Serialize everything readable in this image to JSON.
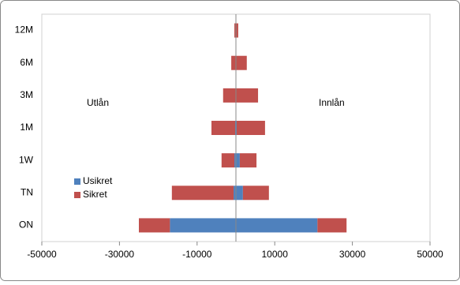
{
  "chart_data": {
    "type": "bar",
    "orientation": "horizontal",
    "stacked": true,
    "categories": [
      "ON",
      "TN",
      "1W",
      "1M",
      "3M",
      "6M",
      "12M"
    ],
    "series": [
      {
        "name": "Usikret",
        "color": "#4f81bd",
        "values": [
          -17000,
          -600,
          -400,
          -200,
          0,
          0,
          0
        ]
      },
      {
        "color": "#4f81bd",
        "values": [
          21000,
          1800,
          1000,
          200,
          0,
          0,
          0
        ]
      },
      {
        "name": "Sikret",
        "color": "#c0504d",
        "values": [
          -8000,
          -15900,
          -3300,
          -6100,
          -3300,
          -1200,
          -400
        ]
      },
      {
        "color": "#c0504d",
        "values": [
          7500,
          6700,
          4300,
          7300,
          5700,
          2800,
          600
        ]
      }
    ],
    "xlim": [
      -50000,
      50000
    ],
    "xticks": [
      -50000,
      -30000,
      -10000,
      10000,
      30000,
      50000
    ],
    "annotations": [
      "Utlån",
      "Innlån"
    ]
  }
}
